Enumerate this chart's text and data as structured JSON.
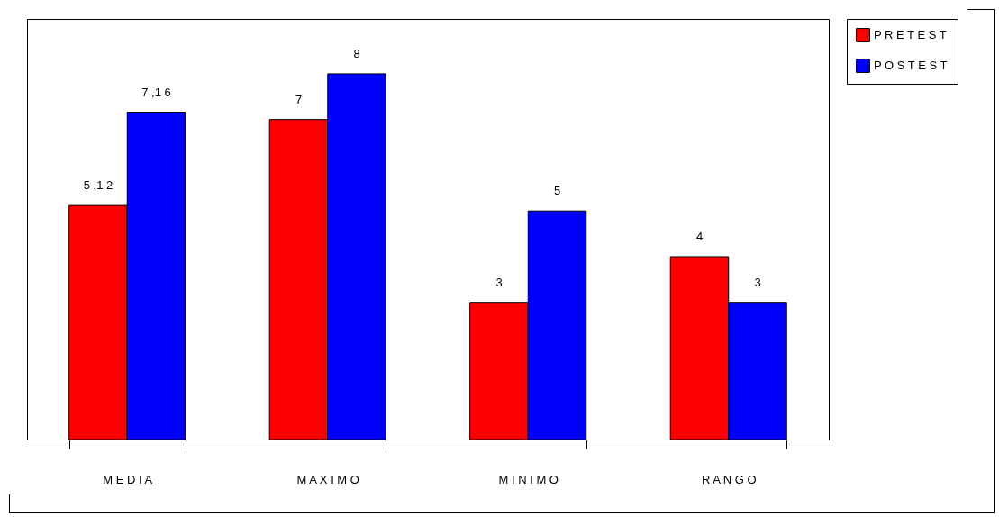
{
  "chart_data": {
    "type": "bar",
    "categories": [
      "M E D I A",
      "M A X I M O",
      "M I N I M O",
      "R A N G O"
    ],
    "series": [
      {
        "name": "P R E T E S T",
        "color": "#ff0000",
        "values": [
          5.12,
          7,
          3,
          4
        ],
        "value_labels": [
          "5 ,1 2",
          "7",
          "3",
          "4"
        ]
      },
      {
        "name": "P O S T E S T",
        "color": "#0000ff",
        "values": [
          7.16,
          8,
          5,
          3
        ],
        "value_labels": [
          "7 ,1 6",
          "8",
          "5",
          "3"
        ]
      }
    ],
    "ylim": [
      0,
      9.2
    ],
    "legend": "right",
    "tick_labels": "x"
  }
}
